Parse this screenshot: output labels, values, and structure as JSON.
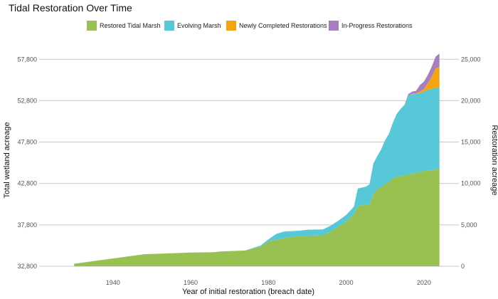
{
  "chart_data": {
    "type": "area",
    "title": "Tidal Restoration Over Time",
    "xlabel": "Year of initial restoration (breach date)",
    "ylabel": "Total wetland acreage",
    "ylabel_right": "Restoration acreage",
    "legend_position": "top",
    "grid": "horizontal",
    "baseline_left": 32800,
    "xlim": [
      1921,
      2029
    ],
    "ylim_right": [
      0,
      27000
    ],
    "x_ticks": [
      1940,
      1960,
      1980,
      2000,
      2020
    ],
    "y_ticks_left": [
      "32,800",
      "37,800",
      "42,800",
      "47,800",
      "52,800",
      "57,800"
    ],
    "y_ticks_right": [
      "0",
      "5,000",
      "10,000",
      "15,000",
      "20,000",
      "25,000"
    ],
    "y_ticks_right_values": [
      0,
      5000,
      10000,
      15000,
      20000,
      25000
    ],
    "x": [
      1930,
      1948,
      1960,
      1966,
      1967,
      1968,
      1974,
      1978,
      1980,
      1982,
      1984,
      1986,
      1988,
      1990,
      1994,
      1996,
      1998,
      2000,
      2002,
      2003,
      2005,
      2006,
      2007,
      2008,
      2009,
      2010,
      2011,
      2012,
      2013,
      2014,
      2015,
      2016,
      2017,
      2018,
      2019,
      2020,
      2021,
      2022,
      2023,
      2024
    ],
    "series": [
      {
        "name": "Restored Tidal Marsh",
        "color": "#99c152",
        "values": [
          300,
          1450,
          1650,
          1700,
          1750,
          1800,
          1900,
          2400,
          3000,
          3200,
          3400,
          3550,
          3650,
          3700,
          3750,
          4200,
          4800,
          5400,
          6300,
          7300,
          7400,
          7500,
          8700,
          9300,
          9600,
          9900,
          10200,
          10600,
          10800,
          10900,
          11000,
          11100,
          11200,
          11300,
          11400,
          11500,
          11600,
          11600,
          11700,
          11700
        ]
      },
      {
        "name": "Evolving Marsh",
        "color": "#56c8d8",
        "values": [
          0,
          0,
          0,
          0,
          0,
          0,
          0,
          100,
          250,
          700,
          800,
          700,
          650,
          700,
          700,
          700,
          700,
          800,
          900,
          2100,
          2200,
          2400,
          3700,
          4000,
          4500,
          5300,
          5800,
          6700,
          7600,
          8100,
          8500,
          9500,
          9600,
          9500,
          9500,
          9600,
          9700,
          9800,
          9900,
          9900
        ]
      },
      {
        "name": "Newly Completed Restorations",
        "color": "#f3a40f",
        "values": [
          0,
          0,
          0,
          0,
          0,
          0,
          0,
          0,
          0,
          0,
          0,
          0,
          0,
          0,
          0,
          0,
          0,
          0,
          0,
          0,
          0,
          0,
          0,
          0,
          0,
          0,
          0,
          0,
          0,
          0,
          0,
          0,
          50,
          100,
          200,
          300,
          800,
          1500,
          2300,
          2500
        ]
      },
      {
        "name": "In-Progress Restorations",
        "color": "#a77fc0",
        "values": [
          0,
          0,
          0,
          0,
          0,
          0,
          0,
          0,
          0,
          0,
          0,
          0,
          0,
          0,
          0,
          0,
          0,
          0,
          0,
          0,
          0,
          0,
          0,
          0,
          0,
          0,
          0,
          0,
          0,
          0,
          0,
          200,
          250,
          300,
          800,
          900,
          1000,
          1200,
          1400,
          1600
        ]
      }
    ]
  }
}
